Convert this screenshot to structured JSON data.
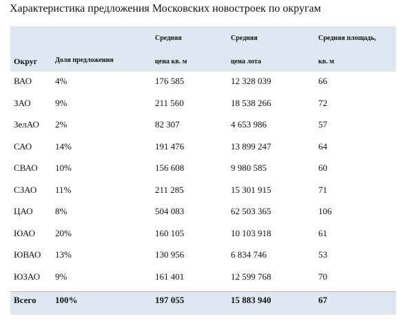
{
  "title": "Характеристика предложения Московских новостроек по округам",
  "table": {
    "header": [
      [
        "Округ"
      ],
      [
        "Доля предложения"
      ],
      [
        "Средняя",
        "цена кв. м"
      ],
      [
        "Средняя",
        "цена лота"
      ],
      [
        "Средняя площадь,",
        "кв. м"
      ]
    ],
    "rows": [
      [
        "ВАО",
        "4%",
        "176 585",
        "12 328 039",
        "66"
      ],
      [
        "ЗАО",
        "9%",
        "211 560",
        "18 538 266",
        "72"
      ],
      [
        "ЗелАО",
        "2%",
        "82 307",
        "4 653 986",
        "57"
      ],
      [
        "САО",
        "14%",
        "191 476",
        "13 899 247",
        "64"
      ],
      [
        "СВАО",
        "10%",
        "156 608",
        "9 980 585",
        "60"
      ],
      [
        "СЗАО",
        "11%",
        "211 285",
        "15 301 915",
        "71"
      ],
      [
        "ЦАО",
        "8%",
        "504 083",
        "62 503 365",
        "106"
      ],
      [
        "ЮАО",
        "20%",
        "160 105",
        "10 103 918",
        "61"
      ],
      [
        "ЮВАО",
        "13%",
        "130 956",
        "6 834 746",
        "53"
      ],
      [
        "ЮЗАО",
        "9%",
        "161 401",
        "12 599 768",
        "70"
      ]
    ],
    "total": [
      "Всего",
      "100%",
      "197 055",
      "15 883 940",
      "67"
    ]
  }
}
